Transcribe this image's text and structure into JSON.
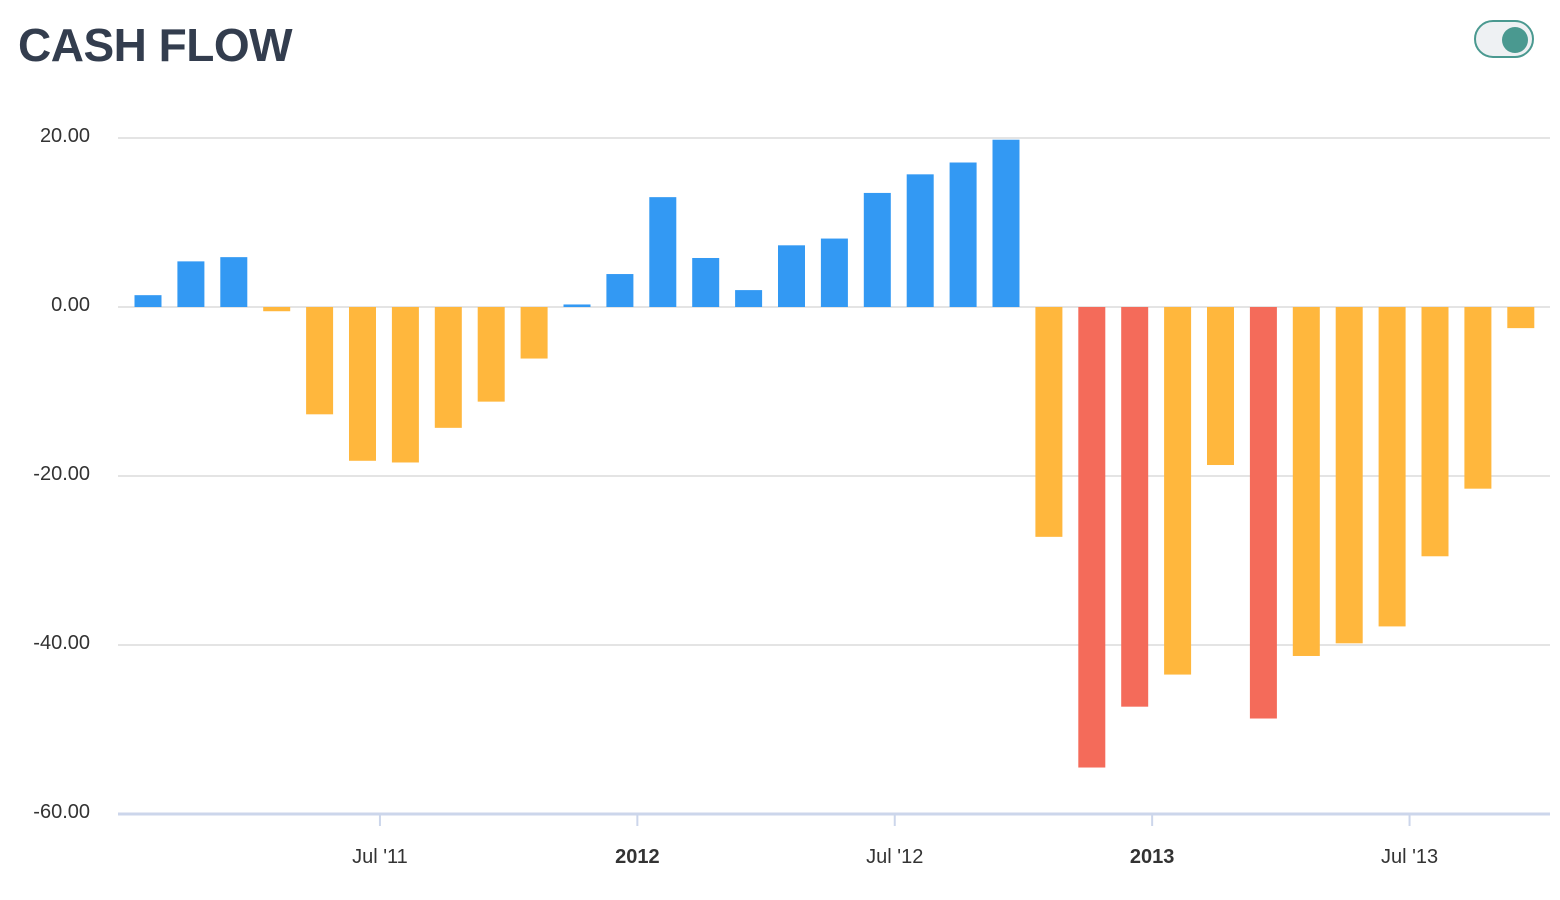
{
  "header": {
    "title": "CASH FLOW"
  },
  "toggle": {
    "state": "on",
    "color": "#4a9990"
  },
  "colors": {
    "positive": "#3399f3",
    "negative": "#ffb73d",
    "strong_negative": "#f46b5a"
  },
  "chart_data": {
    "type": "bar",
    "title": "CASH FLOW",
    "xlabel": "",
    "ylabel": "",
    "ylim": [
      -60,
      20
    ],
    "yticks": [
      20,
      0,
      -20,
      -40,
      -60
    ],
    "ytick_labels": [
      "20.00",
      "0.00",
      "-20.00",
      "-40.00",
      "-60.00"
    ],
    "x_axis_labels": [
      {
        "label": "Jul '11",
        "month": "2011-07",
        "bold": false
      },
      {
        "label": "2012",
        "month": "2012-01",
        "bold": true
      },
      {
        "label": "Jul '12",
        "month": "2012-07",
        "bold": false
      },
      {
        "label": "2013",
        "month": "2013-01",
        "bold": true
      },
      {
        "label": "Jul '13",
        "month": "2013-07",
        "bold": false
      }
    ],
    "grid": true,
    "legend": "none",
    "categories": [
      "2011-01",
      "2011-02",
      "2011-03",
      "2011-04",
      "2011-05",
      "2011-06",
      "2011-07",
      "2011-08",
      "2011-09",
      "2011-10",
      "2011-11",
      "2011-12",
      "2012-01",
      "2012-02",
      "2012-03",
      "2012-04",
      "2012-05",
      "2012-06",
      "2012-07",
      "2012-08",
      "2012-09",
      "2012-10",
      "2012-11",
      "2012-12",
      "2013-01",
      "2013-02",
      "2013-03",
      "2013-04",
      "2013-05",
      "2013-06",
      "2013-07",
      "2013-08",
      "2013-09"
    ],
    "values": [
      1.4,
      5.4,
      5.9,
      -0.5,
      -12.7,
      -18.2,
      -18.4,
      -14.3,
      -11.2,
      -6.1,
      0.3,
      3.9,
      13.0,
      5.8,
      2.0,
      7.3,
      8.1,
      13.5,
      15.7,
      17.1,
      19.8,
      -27.2,
      -54.5,
      -47.3,
      -43.5,
      -18.7,
      -48.7,
      -41.3,
      -39.8,
      -37.8,
      -29.5,
      -21.5,
      -2.5
    ],
    "bar_colors": [
      "#3399f3",
      "#3399f3",
      "#3399f3",
      "#ffb73d",
      "#ffb73d",
      "#ffb73d",
      "#ffb73d",
      "#ffb73d",
      "#ffb73d",
      "#ffb73d",
      "#3399f3",
      "#3399f3",
      "#3399f3",
      "#3399f3",
      "#3399f3",
      "#3399f3",
      "#3399f3",
      "#3399f3",
      "#3399f3",
      "#3399f3",
      "#3399f3",
      "#ffb73d",
      "#f46b5a",
      "#f46b5a",
      "#ffb73d",
      "#ffb73d",
      "#f46b5a",
      "#ffb73d",
      "#ffb73d",
      "#ffb73d",
      "#ffb73d",
      "#ffb73d",
      "#ffb73d"
    ]
  }
}
